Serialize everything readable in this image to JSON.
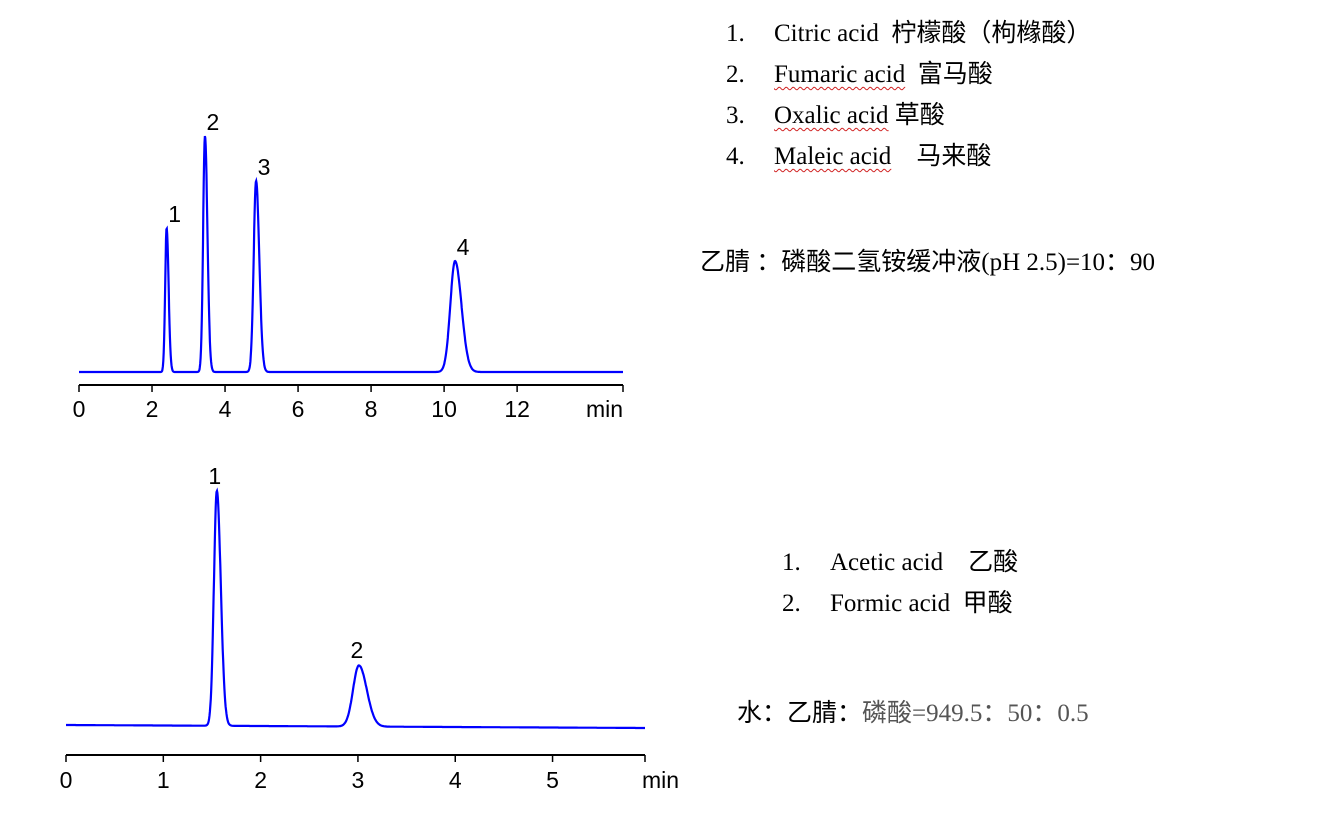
{
  "chart_data": [
    {
      "type": "line",
      "xlabel": "min",
      "xlim": [
        0,
        14.9
      ],
      "xticks": [
        "0",
        "2",
        "4",
        "6",
        "8",
        "10",
        "12"
      ],
      "grid": false,
      "line_color": "#0000ff",
      "peaks": [
        {
          "label": "1",
          "rt": 2.4,
          "height": 61,
          "width": 0.04
        },
        {
          "label": "2",
          "rt": 3.45,
          "height": 100,
          "width": 0.05
        },
        {
          "label": "3",
          "rt": 4.85,
          "height": 81,
          "width": 0.065
        },
        {
          "label": "4",
          "rt": 10.3,
          "height": 47,
          "width": 0.13
        }
      ]
    },
    {
      "type": "line",
      "xlabel": "min",
      "xlim": [
        0,
        5.95
      ],
      "xticks": [
        "0",
        "1",
        "2",
        "3",
        "4",
        "5"
      ],
      "grid": false,
      "line_color": "#0000ff",
      "peaks": [
        {
          "label": "1",
          "rt": 1.55,
          "height": 100,
          "width": 0.03
        },
        {
          "label": "2",
          "rt": 3.01,
          "height": 26,
          "width": 0.06
        }
      ]
    }
  ],
  "legend_top": [
    {
      "num": "1.",
      "name": "Citric acid",
      "cn": "  柠檬酸（枸橼酸）"
    },
    {
      "num": "2.",
      "name": "Fumaric acid",
      "cn": "  富马酸"
    },
    {
      "num": "3.",
      "name": "Oxalic acid",
      "cn": " 草酸"
    },
    {
      "num": "4.",
      "name": "Maleic acid",
      "cn": "    马来酸"
    }
  ],
  "condition_top": "乙腈 ：磷酸二氢铵缓冲液(pH 2.5)=10：90",
  "legend_bottom": [
    {
      "num": "1.",
      "name": "Acetic acid",
      "cn": "    乙酸"
    },
    {
      "num": "2.",
      "name": "Formic acid",
      "cn": "  甲酸"
    }
  ],
  "condition_bottom": {
    "prefix": "水：乙腈：",
    "rest": "磷酸=949.5：50：0.5"
  }
}
